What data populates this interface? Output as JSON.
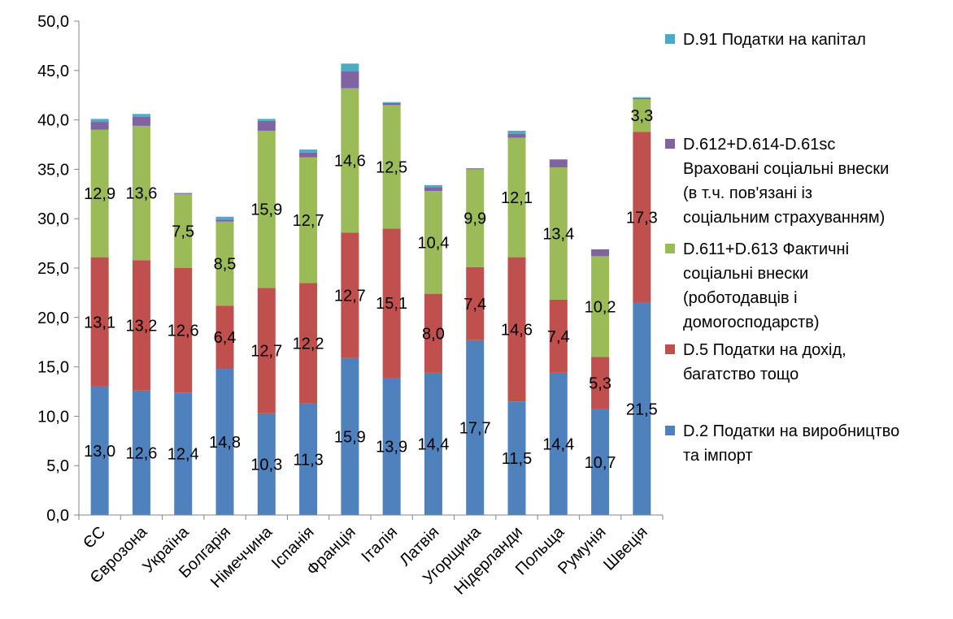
{
  "chart_data": {
    "type": "bar",
    "stacked": true,
    "categories": [
      "ЄС",
      "Єврозона",
      "Україна",
      "Болгарія",
      "Німеччина",
      "Іспанія",
      "Франція",
      "Італія",
      "Латвія",
      "Угорщина",
      "Нідерланди",
      "Польща",
      "Румунія",
      "Швеція"
    ],
    "ylim": [
      0,
      50
    ],
    "yticks": [
      "0,0",
      "5,0",
      "10,0",
      "15,0",
      "20,0",
      "25,0",
      "30,0",
      "35,0",
      "40,0",
      "45,0",
      "50,0"
    ],
    "grid": false,
    "legend_position": "right",
    "series": [
      {
        "name": "D.2 Податки на виробництво\nта імпорт",
        "color": "#4F81BD",
        "values": [
          13.0,
          12.6,
          12.4,
          14.8,
          10.3,
          11.3,
          15.9,
          13.9,
          14.4,
          17.7,
          11.5,
          14.4,
          10.7,
          21.5
        ],
        "labels": [
          "13,0",
          "12,6",
          "12,4",
          "14,8",
          "10,3",
          "11,3",
          "15,9",
          "13,9",
          "14,4",
          "17,7",
          "11,5",
          "14,4",
          "10,7",
          "21,5"
        ]
      },
      {
        "name": "D.5 Податки на дохід,\nбагатство тощо",
        "color": "#C0504D",
        "values": [
          13.1,
          13.2,
          12.6,
          6.4,
          12.7,
          12.2,
          12.7,
          15.1,
          8.0,
          7.4,
          14.6,
          7.4,
          5.3,
          17.3
        ],
        "labels": [
          "13,1",
          "13,2",
          "12,6",
          "6,4",
          "12,7",
          "12,2",
          "12,7",
          "15,1",
          "8,0",
          "7,4",
          "14,6",
          "7,4",
          "5,3",
          "17,3"
        ]
      },
      {
        "name": "D.611+D.613 Фактичні\nсоціальні внески\n(роботодавців і\nдомогосподарств)",
        "color": "#9BBB59",
        "values": [
          12.9,
          13.6,
          7.5,
          8.5,
          15.9,
          12.7,
          14.6,
          12.5,
          10.4,
          9.9,
          12.1,
          13.4,
          10.2,
          3.3
        ],
        "labels": [
          "12,9",
          "13,6",
          "7,5",
          "8,5",
          "15,9",
          "12,7",
          "14,6",
          "12,5",
          "10,4",
          "9,9",
          "12,1",
          "13,4",
          "10,2",
          "3,3"
        ]
      },
      {
        "name": "D.612+D.614-D.61sc\nВраховані соціальні внески\n(в т.ч. пов'язані із\nсоціальним страхуванням)",
        "color": "#8064A2",
        "values": [
          0.8,
          0.9,
          0.1,
          0.2,
          1.0,
          0.5,
          1.7,
          0.2,
          0.4,
          0.1,
          0.4,
          0.8,
          0.7,
          0.1
        ]
      },
      {
        "name": "D.91 Податки на капітал",
        "color": "#4BACC6",
        "values": [
          0.3,
          0.3,
          0.0,
          0.3,
          0.2,
          0.3,
          0.8,
          0.1,
          0.2,
          0.0,
          0.3,
          0.0,
          0.0,
          0.1
        ]
      }
    ]
  }
}
